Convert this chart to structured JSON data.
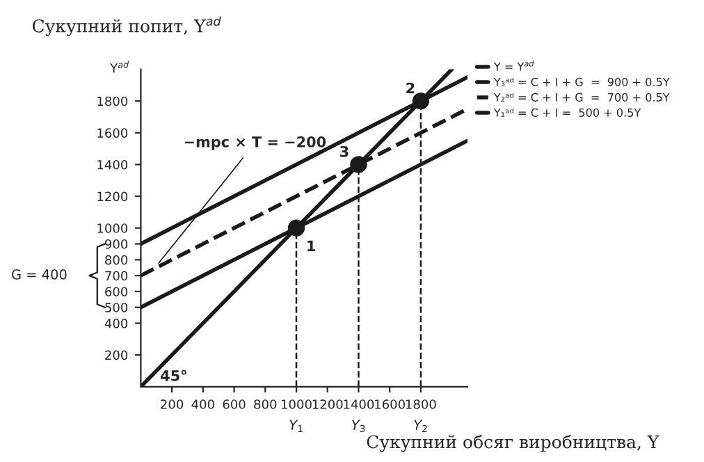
{
  "chart_data": {
    "type": "line",
    "title": "Сукупний попит, Y$^{ad}$",
    "ylabel": "Y$^{ad}$",
    "xlabel": "Сукупний обсяг виробництва, Y",
    "series": [
      {
        "name": "Y = Y$^{ad}$",
        "color": "#1a1a1a",
        "x": [
          0,
          2000
        ],
        "values": [
          0,
          2000
        ],
        "line_style": "solid"
      },
      {
        "name": "Y₃ᵃᵈ = C + I + G  =  900 + 0.5Y",
        "color": "#1a1a1a",
        "x": [
          0,
          2100
        ],
        "values": [
          900,
          1950
        ],
        "line_style": "solid"
      },
      {
        "name": "Y₂ᵃᵈ = C + I + G  =  700 + 0.5Y",
        "color": "#1a1a1a",
        "x": [
          0,
          2100
        ],
        "values": [
          700,
          1750
        ],
        "line_style": "dashed"
      },
      {
        "name": "Y₁ᵃᵈ = C + I =  500 + 0.5Y",
        "color": "#1a1a1a",
        "x": [
          0,
          2100
        ],
        "values": [
          500,
          1550
        ],
        "line_style": "solid"
      },
      {
        "type": "scatter",
        "color": "#1a1a1a",
        "x": [
          1000,
          1800,
          1400
        ],
        "values": [
          1000,
          1800,
          1400
        ],
        "marker": "circle"
      }
    ],
    "xlim": [
      0,
      2100
    ],
    "ylim": [
      0,
      2000
    ],
    "xticks": [
      200,
      400,
      600,
      800,
      1000,
      1200,
      1400,
      1600,
      1800
    ],
    "yticks": [
      200,
      400,
      500,
      600,
      700,
      800,
      900,
      1000,
      1200,
      1400,
      1600,
      1800
    ],
    "ref_lines": [
      {
        "axis": "x",
        "value": 1000,
        "label": "Y$_{1}$",
        "line_style": "dashed"
      },
      {
        "axis": "x",
        "value": 1400,
        "label": "Y$_{3}$",
        "line_style": "dashed"
      },
      {
        "axis": "x",
        "value": 1800,
        "label": "Y$_{2}$",
        "line_style": "dashed"
      }
    ],
    "annotations": [
      {
        "text": "1",
        "x": 1000,
        "y": 1000
      },
      {
        "text": "2",
        "x": 1800,
        "y": 1800
      },
      {
        "text": "3",
        "x": 1400,
        "y": 1400
      },
      {
        "text": "−mpc × T = −200",
        "x": 100,
        "y": 760
      },
      "G = 400",
      {
        "text": "45°",
        "x": 0,
        "y": 0
      }
    ],
    "grid": false,
    "legend": "top right"
  }
}
